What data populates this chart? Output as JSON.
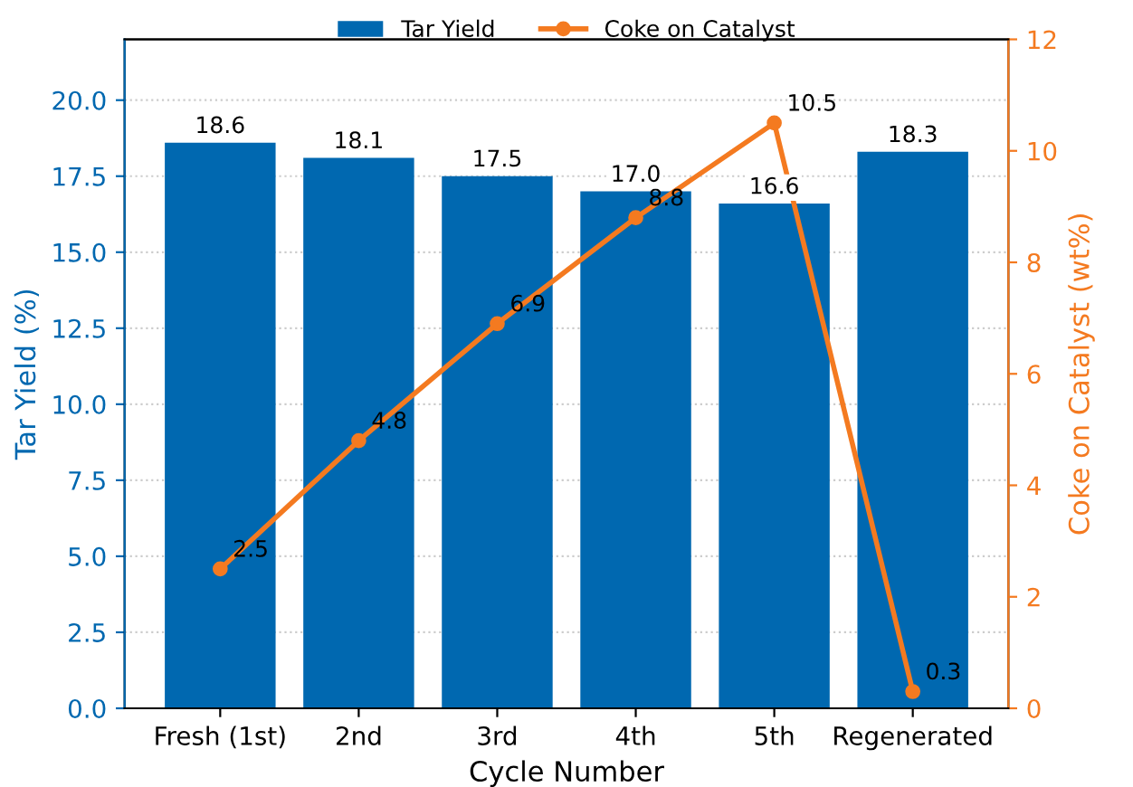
{
  "chart_data": {
    "type": "bar",
    "xlabel": "Cycle Number",
    "ylabel": "Tar Yield (%)",
    "y2label": "Coke on Catalyst (wt%)",
    "categories": [
      "Fresh (1st)",
      "2nd",
      "3rd",
      "4th",
      "5th",
      "Regenerated"
    ],
    "series": [
      {
        "name": "Tar Yield",
        "color": "#0068b0",
        "values": [
          18.6,
          18.1,
          17.5,
          17.0,
          16.6,
          18.3
        ],
        "value_labels": [
          "18.6",
          "18.1",
          "17.5",
          "17.0",
          "16.6",
          "18.3"
        ]
      },
      {
        "name": "Coke on Catalyst",
        "type": "line",
        "axis": "y2",
        "color": "#f47a20",
        "values": [
          2.5,
          4.8,
          6.9,
          8.8,
          10.5,
          0.3
        ],
        "marker": "circle"
      }
    ],
    "ylim": [
      0,
      22
    ],
    "yticks": [
      {
        "value": 0,
        "label": "0.0"
      },
      2.5,
      {
        "value": 5,
        "label": "5.0"
      },
      7.5,
      {
        "value": 10,
        "label": "10.0"
      },
      12.5,
      {
        "value": 15,
        "label": "15.0"
      },
      17.5,
      {
        "value": 20,
        "label": "20.0"
      }
    ],
    "y2lim": [
      0,
      12
    ],
    "y2ticks": [
      0,
      2,
      4,
      6,
      8,
      10,
      12
    ],
    "data_labels": true,
    "grid": "y",
    "legend": "top"
  }
}
